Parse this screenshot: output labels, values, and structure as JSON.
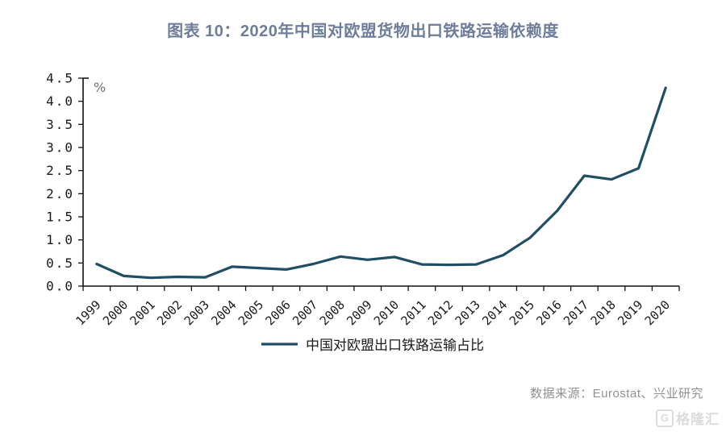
{
  "header": {
    "title": "图表 10：2020年中国对欧盟货物出口铁路运输依赖度"
  },
  "chart_data": {
    "type": "line",
    "title": "图表 10：2020年中国对欧盟货物出口铁路运输依赖度",
    "unit_label": "%",
    "categories": [
      "1999",
      "2000",
      "2001",
      "2002",
      "2003",
      "2004",
      "2005",
      "2006",
      "2007",
      "2008",
      "2009",
      "2010",
      "2011",
      "2012",
      "2013",
      "2014",
      "2015",
      "2016",
      "2017",
      "2018",
      "2019",
      "2020"
    ],
    "series": [
      {
        "name": "中国对欧盟出口铁路运输占比",
        "values": [
          0.48,
          0.22,
          0.18,
          0.2,
          0.19,
          0.42,
          0.39,
          0.36,
          0.48,
          0.64,
          0.57,
          0.63,
          0.47,
          0.46,
          0.47,
          0.67,
          1.05,
          1.63,
          2.39,
          2.31,
          2.55,
          4.29
        ],
        "color": "#1f4e66"
      }
    ],
    "ylim": [
      0,
      4.5
    ],
    "ytick_step": 0.5,
    "grid": false,
    "legend_position": "bottom"
  },
  "footer": {
    "source": "数据来源：Eurostat、兴业研究"
  },
  "watermark": {
    "logo": "G",
    "text": "格隆汇"
  },
  "colors": {
    "title": "#6e7e9a",
    "line": "#1f4e66",
    "axis": "#111111",
    "source_text": "#909090",
    "watermark": "#dcdcdc"
  }
}
